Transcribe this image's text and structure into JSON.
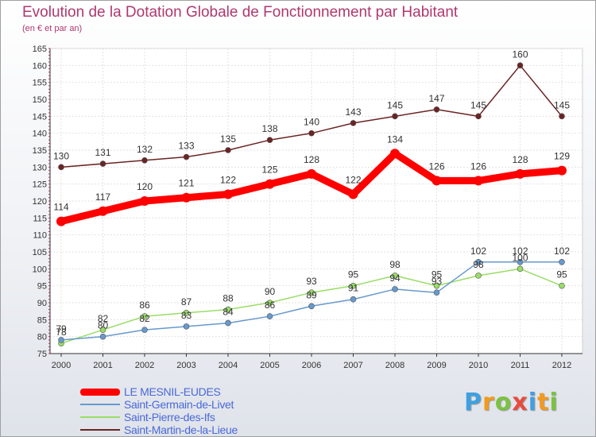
{
  "chart_data": {
    "type": "line",
    "title": "Evolution de la Dotation Globale de Fonctionnement par Habitant",
    "subtitle": "(en € et par an)",
    "xlabel": "",
    "ylabel": "",
    "categories": [
      "2000",
      "2001",
      "2002",
      "2003",
      "2004",
      "2005",
      "2006",
      "2007",
      "2008",
      "2009",
      "2010",
      "2011",
      "2012"
    ],
    "ylim": [
      75,
      165
    ],
    "yticks": [
      75,
      80,
      85,
      90,
      95,
      100,
      105,
      110,
      115,
      120,
      125,
      130,
      135,
      140,
      145,
      150,
      155,
      160,
      165
    ],
    "grid": true,
    "legend_position": "bottom-left",
    "series": [
      {
        "name": "LE MESNIL-EUDES",
        "color": "#ff0000",
        "values": [
          114,
          117,
          120,
          121,
          122,
          125,
          128,
          122,
          134,
          126,
          126,
          128,
          129
        ]
      },
      {
        "name": "Saint-Germain-de-Livet",
        "color": "#6699cc",
        "values": [
          79,
          80,
          82,
          83,
          84,
          86,
          89,
          91,
          94,
          93,
          102,
          102,
          102
        ]
      },
      {
        "name": "Saint-Pierre-des-Ifs",
        "color": "#99dd66",
        "values": [
          78,
          82,
          86,
          87,
          88,
          90,
          93,
          95,
          98,
          95,
          98,
          100,
          95
        ]
      },
      {
        "name": "Saint-Martin-de-la-Lieue",
        "color": "#6b2424",
        "values": [
          130,
          131,
          132,
          133,
          135,
          138,
          140,
          143,
          145,
          147,
          145,
          160,
          145
        ]
      }
    ]
  },
  "logo_text": "Proxiti"
}
